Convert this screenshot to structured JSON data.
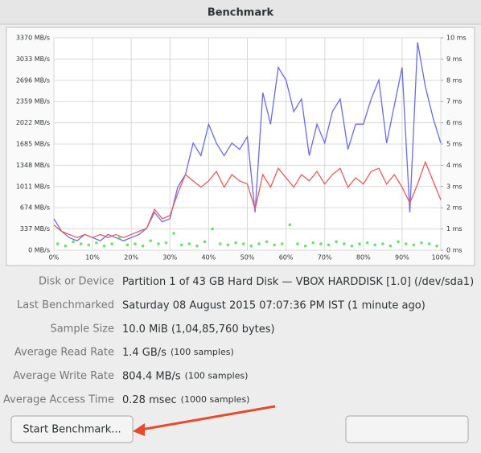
{
  "title": "Benchmark",
  "chart_data": {
    "type": "line",
    "x": [
      0,
      2,
      4,
      6,
      8,
      10,
      12,
      14,
      16,
      18,
      20,
      22,
      24,
      26,
      28,
      30,
      32,
      34,
      36,
      38,
      40,
      42,
      44,
      46,
      48,
      50,
      52,
      54,
      56,
      58,
      60,
      62,
      64,
      66,
      68,
      70,
      72,
      74,
      76,
      78,
      80,
      82,
      84,
      86,
      88,
      90,
      92,
      94,
      96,
      98,
      100
    ],
    "xlim": [
      0,
      100
    ],
    "xticks": [
      {
        "value": 0,
        "label": "0%"
      },
      {
        "value": 10,
        "label": "10%"
      },
      {
        "value": 20,
        "label": "20%"
      },
      {
        "value": 30,
        "label": "30%"
      },
      {
        "value": 40,
        "label": "40%"
      },
      {
        "value": 50,
        "label": "50%"
      },
      {
        "value": 60,
        "label": "60%"
      },
      {
        "value": 70,
        "label": "70%"
      },
      {
        "value": 80,
        "label": "80%"
      },
      {
        "value": 90,
        "label": "90%"
      },
      {
        "value": 100,
        "label": "100%"
      }
    ],
    "ylim": [
      0,
      3370
    ],
    "yticks": [
      {
        "value": 0,
        "label": "0 MB/s"
      },
      {
        "value": 337,
        "label": "337 MB/s"
      },
      {
        "value": 674,
        "label": "674 MB/s"
      },
      {
        "value": 1011,
        "label": "1011 MB/s"
      },
      {
        "value": 1348,
        "label": "1348 MB/s"
      },
      {
        "value": 1685,
        "label": "1685 MB/s"
      },
      {
        "value": 2022,
        "label": "2022 MB/s"
      },
      {
        "value": 2359,
        "label": "2359 MB/s"
      },
      {
        "value": 2696,
        "label": "2696 MB/s"
      },
      {
        "value": 3033,
        "label": "3033 MB/s"
      },
      {
        "value": 3370,
        "label": "3370 MB/s"
      }
    ],
    "y2lim": [
      0,
      10
    ],
    "y2ticks": [
      {
        "value": 0,
        "label": "0 ms"
      },
      {
        "value": 1,
        "label": "1 ms"
      },
      {
        "value": 2,
        "label": "2 ms"
      },
      {
        "value": 3,
        "label": "3 ms"
      },
      {
        "value": 4,
        "label": "4 ms"
      },
      {
        "value": 5,
        "label": "5 ms"
      },
      {
        "value": 6,
        "label": "6 ms"
      },
      {
        "value": 7,
        "label": "7 ms"
      },
      {
        "value": 8,
        "label": "8 ms"
      },
      {
        "value": 9,
        "label": "9 ms"
      },
      {
        "value": 10,
        "label": "10 ms"
      }
    ],
    "grid": true,
    "series": [
      {
        "color": "#6a6ae8",
        "values": [
          500,
          300,
          200,
          150,
          250,
          200,
          150,
          250,
          200,
          150,
          200,
          250,
          350,
          600,
          450,
          500,
          1000,
          1200,
          1700,
          1500,
          2000,
          1700,
          1500,
          1700,
          1600,
          1800,
          600,
          2500,
          2000,
          2900,
          2700,
          2200,
          2400,
          1500,
          2000,
          1700,
          2200,
          2400,
          1600,
          2000,
          2000,
          2400,
          2700,
          1700,
          2300,
          2900,
          600,
          3300,
          2600,
          2100,
          1700
        ]
      },
      {
        "color": "#e85a5a",
        "values": [
          400,
          300,
          250,
          200,
          250,
          200,
          250,
          200,
          250,
          200,
          250,
          300,
          350,
          650,
          500,
          550,
          900,
          1200,
          1100,
          1000,
          1100,
          1250,
          1000,
          1200,
          1100,
          1050,
          650,
          1200,
          1000,
          1300,
          1150,
          1000,
          1200,
          1100,
          1250,
          1050,
          1200,
          1300,
          1000,
          1150,
          1050,
          1250,
          1300,
          1050,
          1200,
          1000,
          750,
          1050,
          1400,
          1100,
          800
        ]
      },
      {
        "color": "#6ee06e",
        "type": "scatter",
        "axis": "y2",
        "x": [
          1,
          3,
          5,
          7,
          9,
          11,
          13,
          15,
          17,
          19,
          21,
          23,
          25,
          27,
          29,
          31,
          33,
          35,
          37,
          39,
          41,
          43,
          45,
          47,
          49,
          51,
          53,
          55,
          57,
          59,
          61,
          63,
          65,
          67,
          69,
          71,
          73,
          75,
          77,
          79,
          81,
          83,
          85,
          87,
          89,
          91,
          93,
          95,
          97,
          99
        ],
        "values": [
          0.3,
          0.2,
          0.4,
          0.3,
          0.25,
          0.35,
          0.2,
          0.3,
          0.6,
          0.25,
          0.3,
          0.2,
          0.45,
          0.3,
          0.35,
          0.8,
          0.25,
          0.3,
          0.2,
          0.4,
          1.0,
          0.3,
          0.25,
          0.35,
          0.3,
          0.2,
          0.3,
          0.4,
          0.25,
          0.3,
          1.2,
          0.3,
          0.2,
          0.35,
          0.3,
          0.25,
          0.4,
          0.3,
          0.2,
          0.3,
          0.35,
          0.25,
          0.3,
          0.2,
          0.4,
          0.3,
          0.25,
          0.35,
          0.3,
          0.2
        ]
      }
    ]
  },
  "info": {
    "rows": [
      {
        "label": "Disk or Device",
        "value": "Partition 1 of 43 GB Hard Disk — VBOX HARDDISK [1.0] (/dev/sda1)"
      },
      {
        "label": "Last Benchmarked",
        "value": "Saturday 08 August 2015 07:07:36 PM IST (1 minute ago)"
      },
      {
        "label": "Sample Size",
        "value": "10.0 MiB (1,04,85,760 bytes)"
      },
      {
        "label": "Average Read Rate",
        "value": "1.4 GB/s",
        "note": "(100 samples)"
      },
      {
        "label": "Average Write Rate",
        "value": "804.4 MB/s",
        "note": "(100 samples)"
      },
      {
        "label": "Average Access Time",
        "value": "0.28 msec",
        "note": "(1000 samples)"
      }
    ]
  },
  "buttons": {
    "start": "Start Benchmark..."
  }
}
